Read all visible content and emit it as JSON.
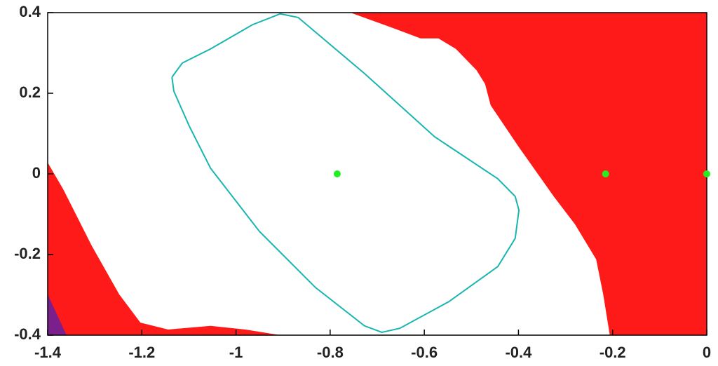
{
  "chart_data": {
    "type": "scatter",
    "xlim": [
      -1.4,
      0
    ],
    "ylim": [
      -0.4,
      0.4
    ],
    "xticks": [
      -1.4,
      -1.2,
      -1,
      -0.8,
      -0.6,
      -0.4,
      -0.2,
      0
    ],
    "yticks": [
      -0.4,
      -0.2,
      0,
      0.2,
      0.4
    ],
    "grid": false,
    "regions": [
      {
        "color": "#ff1a1a",
        "x": [
          -0.757,
          0,
          0,
          -0.206,
          -0.22,
          -0.235,
          -0.28,
          -0.325,
          -0.399,
          -0.459,
          -0.471,
          -0.489,
          -0.533,
          -0.57,
          -0.608,
          -0.667
        ],
        "y": [
          0.4,
          0.4,
          -0.4,
          -0.4,
          -0.299,
          -0.212,
          -0.125,
          -0.056,
          0.066,
          0.17,
          0.223,
          0.257,
          0.31,
          0.336,
          0.336,
          0.362
        ]
      },
      {
        "color": "#ff1a1a",
        "x": [
          -1.4,
          -1.367,
          -1.307,
          -1.248,
          -1.203,
          -1.144,
          -1.054,
          -0.98,
          -0.906,
          -1.4
        ],
        "y": [
          0.028,
          -0.038,
          -0.177,
          -0.299,
          -0.369,
          -0.386,
          -0.377,
          -0.386,
          -0.4,
          -0.4
        ]
      },
      {
        "color": "#7a1f8c",
        "x": [
          -1.4,
          -1.4,
          -1.36
        ],
        "y": [
          -0.299,
          -0.4,
          -0.4
        ]
      }
    ],
    "contour": {
      "color": "#1ab5b0",
      "x": [
        -1.136,
        -1.114,
        -1.054,
        -0.965,
        -0.906,
        -0.868,
        -0.727,
        -0.578,
        -0.444,
        -0.407,
        -0.399,
        -0.407,
        -0.444,
        -0.548,
        -0.652,
        -0.69,
        -0.727,
        -0.831,
        -0.95,
        -1.054,
        -1.099,
        -1.132,
        -1.136
      ],
      "y": [
        0.24,
        0.275,
        0.31,
        0.37,
        0.397,
        0.388,
        0.249,
        0.092,
        -0.012,
        -0.056,
        -0.09,
        -0.16,
        -0.23,
        -0.317,
        -0.383,
        -0.393,
        -0.377,
        -0.282,
        -0.143,
        0.014,
        0.118,
        0.205,
        0.24
      ]
    },
    "points": {
      "color": "#22ee22",
      "x": [
        -0.785,
        -0.215,
        0
      ],
      "y": [
        0,
        0,
        0
      ]
    }
  }
}
